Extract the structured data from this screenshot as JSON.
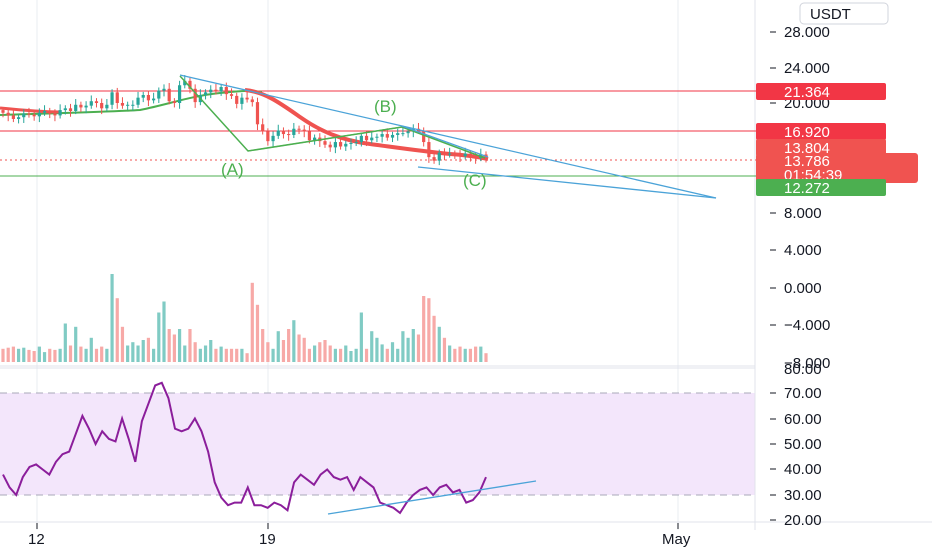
{
  "chart_data": [
    {
      "type": "candlestick",
      "quote_currency": "USDT",
      "y_ticks": [
        "28.000",
        "24.000",
        "20.000",
        "8.000",
        "4.000",
        "0.000",
        "−4.000",
        "−8.000"
      ],
      "ylim": [
        -8,
        28
      ],
      "x_tick_labels": [
        "12",
        "19",
        "May"
      ],
      "horizontal_levels": [
        {
          "value": 21.364,
          "label": "21.364",
          "color": "#f23645"
        },
        {
          "value": 16.92,
          "label": "16.920",
          "color": "#f23645"
        },
        {
          "value": 12.272,
          "label": "12.272",
          "color": "#4caf50"
        }
      ],
      "price_tags": [
        {
          "label": "13.804",
          "color": "#f05350"
        },
        {
          "label": "13.786",
          "color": "#f05350"
        },
        {
          "label": "01:54:39",
          "color": "#f05350"
        }
      ],
      "wave_labels": [
        "(A)",
        "(B)",
        "(C)"
      ],
      "closes": [
        18.9,
        18.6,
        18.2,
        18.4,
        18.8,
        18.7,
        18.5,
        18.9,
        19.1,
        18.8,
        18.6,
        19.2,
        19.4,
        19.1,
        19.8,
        19.5,
        19.7,
        20.2,
        20.0,
        19.4,
        19.8,
        21.2,
        20.0,
        19.7,
        19.8,
        19.8,
        20.6,
        20.9,
        20.3,
        20.5,
        21.4,
        21.6,
        20.2,
        20.0,
        22.0,
        22.5,
        21.6,
        20.1,
        20.9,
        21.2,
        21.5,
        21.3,
        21.8,
        21.0,
        20.8,
        19.9,
        20.6,
        20.4,
        20.1,
        17.6,
        16.8,
        15.7,
        16.3,
        16.9,
        16.5,
        16.4,
        17.1,
        17.0,
        16.8,
        15.8,
        16.1,
        15.7,
        15.3,
        15.0,
        15.6,
        15.1,
        15.4,
        15.5,
        15.6,
        16.3,
        15.8,
        16.1,
        16.2,
        16.5,
        16.1,
        16.4,
        16.6,
        16.6,
        16.8,
        17.1,
        16.9,
        15.6,
        13.9,
        13.5,
        14.4,
        14.2,
        14.3,
        14.2,
        14.0,
        14.3,
        13.9,
        13.8,
        14.2,
        13.8
      ],
      "volumes": [
        0.12,
        0.13,
        0.14,
        0.12,
        0.13,
        0.11,
        0.1,
        0.14,
        0.09,
        0.12,
        0.11,
        0.12,
        0.35,
        0.15,
        0.32,
        0.14,
        0.12,
        0.22,
        0.12,
        0.14,
        0.12,
        0.8,
        0.58,
        0.32,
        0.15,
        0.18,
        0.15,
        0.2,
        0.22,
        0.12,
        0.45,
        0.55,
        0.3,
        0.25,
        0.3,
        0.15,
        0.3,
        0.18,
        0.12,
        0.15,
        0.2,
        0.12,
        0.14,
        0.12,
        0.12,
        0.12,
        0.12,
        0.08,
        0.72,
        0.52,
        0.3,
        0.18,
        0.12,
        0.28,
        0.2,
        0.3,
        0.38,
        0.25,
        0.22,
        0.12,
        0.15,
        0.18,
        0.2,
        0.15,
        0.12,
        0.12,
        0.15,
        0.1,
        0.12,
        0.45,
        0.12,
        0.28,
        0.22,
        0.16,
        0.12,
        0.18,
        0.12,
        0.28,
        0.22,
        0.3,
        0.25,
        0.6,
        0.58,
        0.42,
        0.32,
        0.22,
        0.15,
        0.12,
        0.14,
        0.12,
        0.12,
        0.14,
        0.14,
        0.08
      ]
    },
    {
      "type": "line",
      "indicator": "rsi",
      "y_ticks": [
        "70.00",
        "60.00",
        "50.00",
        "40.00",
        "30.00",
        "20.00"
      ],
      "ylim": [
        20,
        70
      ],
      "band": [
        30,
        70
      ],
      "values": [
        38,
        33,
        30,
        37,
        41,
        42,
        40,
        38,
        43,
        46,
        47,
        54,
        61,
        56,
        50,
        55,
        52,
        51,
        60,
        52,
        43,
        59,
        66,
        73,
        74,
        68,
        56,
        55,
        56,
        60,
        55,
        47,
        35,
        29,
        26,
        27,
        27,
        33,
        26,
        26,
        25,
        27,
        26,
        24,
        35,
        38,
        36,
        34,
        38,
        40,
        37,
        36,
        37,
        32,
        37,
        35,
        33,
        27,
        26,
        25,
        23,
        27,
        30,
        32,
        33,
        30,
        33,
        34,
        31,
        32,
        27,
        28,
        31,
        37
      ],
      "x_tick_labels": [
        "12",
        "19",
        "May"
      ]
    }
  ],
  "axis": {
    "currency": "USDT",
    "price_ticks": [
      "28.000",
      "24.000",
      "20.000",
      "8.000",
      "4.000",
      "0.000",
      "−4.000",
      "−8.000"
    ],
    "rsi_ticks": [
      "70.00",
      "60.00",
      "50.00",
      "40.00",
      "30.00",
      "20.00"
    ],
    "dates": [
      "12",
      "19",
      "May"
    ]
  },
  "colors": {
    "up": "#26a69a",
    "down": "#ef5350",
    "level_red": "#f23645",
    "level_green": "#4caf50",
    "trend_blue": "#4ba3d8",
    "rsi_line": "#8b1e9b",
    "rsi_band": "#f3e6fb"
  }
}
